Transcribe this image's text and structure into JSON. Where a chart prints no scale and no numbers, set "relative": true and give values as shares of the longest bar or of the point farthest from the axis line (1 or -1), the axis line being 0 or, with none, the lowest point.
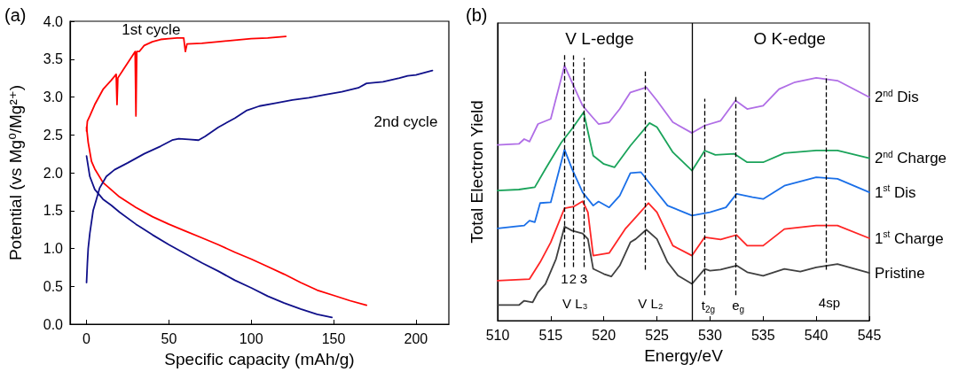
{
  "chart_data": [
    {
      "type": "line",
      "title": "(a)",
      "xlabel": "Specific capacity (mAh/g)",
      "ylabel": "Potential (vs Mg⁰/Mg²⁺)",
      "xlim": [
        -10,
        220
      ],
      "xticks": [
        0,
        50,
        100,
        150,
        200
      ],
      "ylim": [
        0,
        4
      ],
      "yticks": [
        {
          "value": 0,
          "label": "0.0"
        },
        0.5,
        {
          "value": 1,
          "label": "1.0"
        },
        1.5,
        {
          "value": 2,
          "label": "2.0"
        },
        2.5,
        {
          "value": 3,
          "label": "3.0"
        },
        3.5,
        {
          "value": 4,
          "label": "4.0"
        }
      ],
      "grid": false,
      "legend": false,
      "marker": "none",
      "line_style": "solid",
      "series": [
        {
          "name": "1st cycle",
          "color": "#ff0000",
          "x": [
            0,
            0.5,
            2,
            5,
            10,
            15,
            18,
            18.5,
            19,
            22,
            25,
            28,
            29.5,
            30,
            30.5,
            32,
            35,
            40,
            45,
            50,
            55,
            59,
            60,
            61,
            70,
            80,
            90,
            100,
            110,
            121
          ],
          "values": [
            2.55,
            2.68,
            2.75,
            2.9,
            3.1,
            3.22,
            3.3,
            2.9,
            3.25,
            3.35,
            3.45,
            3.55,
            3.6,
            2.75,
            3.6,
            3.6,
            3.68,
            3.73,
            3.76,
            3.77,
            3.78,
            3.78,
            3.6,
            3.7,
            3.71,
            3.73,
            3.75,
            3.77,
            3.78,
            3.8
          ]
        },
        {
          "color": "#ff0000",
          "x": [
            0,
            1,
            3,
            5,
            10,
            20,
            30,
            40,
            50,
            60,
            70,
            80,
            90,
            100,
            110,
            120,
            130,
            140,
            150,
            160,
            170
          ],
          "values": [
            2.6,
            2.4,
            2.15,
            2.05,
            1.87,
            1.68,
            1.54,
            1.42,
            1.32,
            1.23,
            1.14,
            1.05,
            0.95,
            0.86,
            0.76,
            0.66,
            0.55,
            0.45,
            0.38,
            0.31,
            0.25
          ]
        },
        {
          "name": "2nd cycle",
          "color": "#10108a",
          "x": [
            0,
            0.5,
            1,
            2,
            4,
            6,
            8,
            12,
            17,
            25,
            35,
            45,
            52,
            56,
            62,
            68,
            72,
            80,
            90,
            97,
            105,
            115,
            125,
            135,
            145,
            155,
            165,
            170,
            180,
            190,
            195,
            200,
            210
          ],
          "values": [
            0.55,
            0.8,
            1.0,
            1.2,
            1.5,
            1.65,
            1.8,
            1.95,
            2.04,
            2.13,
            2.25,
            2.35,
            2.43,
            2.45,
            2.44,
            2.43,
            2.48,
            2.6,
            2.72,
            2.82,
            2.88,
            2.92,
            2.96,
            2.99,
            3.03,
            3.07,
            3.12,
            3.18,
            3.2,
            3.25,
            3.28,
            3.29,
            3.35
          ]
        },
        {
          "color": "#10108a",
          "x": [
            0,
            2,
            5,
            10,
            15,
            20,
            30,
            40,
            50,
            60,
            70,
            80,
            90,
            100,
            110,
            120,
            130,
            140,
            149
          ],
          "values": [
            2.22,
            1.95,
            1.78,
            1.65,
            1.57,
            1.48,
            1.32,
            1.18,
            1.05,
            0.93,
            0.81,
            0.7,
            0.58,
            0.48,
            0.37,
            0.28,
            0.2,
            0.13,
            0.09
          ]
        }
      ]
    },
    {
      "type": "line",
      "title": "(b)",
      "xlabel": "Energy/eV",
      "ylabel": "Total Electron Yield",
      "relative": true,
      "xlim": [
        510,
        545
      ],
      "xticks": [
        510,
        515,
        520,
        525,
        530,
        535,
        540,
        545
      ],
      "grid": false,
      "legend": false,
      "marker": "none",
      "line_style": "solid",
      "series": [
        {
          "name": "Pristine",
          "color": "#404040",
          "x": [
            510,
            512,
            512.5,
            513.3,
            513.8,
            514.5,
            515.5,
            516.3,
            517,
            518,
            518.5,
            519,
            520,
            520.7,
            521.5,
            522.5,
            523,
            524,
            525,
            526,
            527,
            528.3,
            529.5,
            530,
            531,
            532.5,
            533.5,
            535,
            537,
            538.5,
            540,
            542,
            545
          ],
          "values": [
            0.061,
            0.061,
            0.078,
            0.072,
            0.111,
            0.144,
            0.242,
            0.369,
            0.353,
            0.342,
            0.32,
            0.203,
            0.183,
            0.173,
            0.216,
            0.307,
            0.32,
            0.357,
            0.32,
            0.229,
            0.176,
            0.144,
            0.203,
            0.196,
            0.2,
            0.216,
            0.19,
            0.176,
            0.203,
            0.192,
            0.209,
            0.222,
            0.187
          ]
        },
        {
          "name": "1$^{st}$ Charge",
          "color": "#ff2525",
          "x": [
            510,
            513,
            514,
            515,
            516.3,
            517.2,
            518,
            518.5,
            519,
            520.5,
            522,
            523,
            524.2,
            525,
            526.5,
            528.3,
            529.5,
            531,
            532.5,
            533.5,
            535,
            537,
            540,
            542,
            545
          ],
          "values": [
            0.157,
            0.163,
            0.229,
            0.307,
            0.441,
            0.448,
            0.468,
            0.425,
            0.255,
            0.265,
            0.359,
            0.405,
            0.461,
            0.425,
            0.294,
            0.255,
            0.327,
            0.318,
            0.336,
            0.294,
            0.294,
            0.359,
            0.373,
            0.373,
            0.323
          ]
        },
        {
          "name": "1$^{st}$ Dis",
          "color": "#1a6fe8",
          "x": [
            510,
            512.5,
            513,
            513.5,
            514,
            515,
            516.3,
            517,
            518,
            519,
            519.5,
            520.5,
            521.5,
            522.5,
            523.5,
            524.5,
            526,
            528.3,
            530,
            531.5,
            532.5,
            534,
            535,
            537,
            540,
            542,
            545
          ],
          "values": [
            0.362,
            0.373,
            0.392,
            0.386,
            0.461,
            0.464,
            0.671,
            0.595,
            0.503,
            0.451,
            0.467,
            0.444,
            0.49,
            0.579,
            0.582,
            0.529,
            0.451,
            0.412,
            0.425,
            0.444,
            0.497,
            0.484,
            0.477,
            0.529,
            0.562,
            0.556,
            0.503
          ]
        },
        {
          "name": "2$^{nd}$ Charge",
          "color": "#1aa35a",
          "x": [
            510,
            512,
            513.5,
            514.5,
            516,
            517,
            518.1,
            519,
            520,
            521,
            522.5,
            524.3,
            525,
            526.5,
            528.3,
            529.5,
            530.5,
            532.3,
            533.5,
            535,
            537,
            540,
            542,
            545
          ],
          "values": [
            0.51,
            0.514,
            0.523,
            0.595,
            0.699,
            0.752,
            0.817,
            0.647,
            0.614,
            0.601,
            0.686,
            0.775,
            0.759,
            0.66,
            0.588,
            0.667,
            0.65,
            0.654,
            0.621,
            0.621,
            0.657,
            0.667,
            0.667,
            0.637
          ]
        },
        {
          "name": "2$^{nd}$ Dis",
          "color": "#b06ee6",
          "x": [
            510,
            512,
            512.5,
            513,
            513.8,
            515,
            516.3,
            517,
            518,
            518.8,
            519.5,
            520.5,
            521.5,
            522.5,
            524,
            525,
            526.5,
            528.3,
            529.5,
            531,
            532.4,
            533.5,
            535,
            536.5,
            538,
            540,
            542,
            545
          ],
          "values": [
            0.689,
            0.693,
            0.712,
            0.702,
            0.771,
            0.791,
            1.0,
            0.935,
            0.843,
            0.804,
            0.771,
            0.778,
            0.83,
            0.895,
            0.915,
            0.863,
            0.778,
            0.736,
            0.765,
            0.784,
            0.863,
            0.83,
            0.843,
            0.908,
            0.935,
            0.952,
            0.941,
            0.876
          ]
        }
      ],
      "ref_lines": [
        {
          "axis": "x",
          "value": 516.3,
          "line_style": "dashed",
          "color": "#000000"
        },
        {
          "axis": "x",
          "value": 517.1,
          "line_style": "dashed",
          "color": "#000000"
        },
        {
          "axis": "x",
          "value": 518.1,
          "line_style": "dashed",
          "color": "#000000"
        },
        {
          "axis": "x",
          "value": 523.9,
          "line_style": "dashed",
          "color": "#000000",
          "label": "V L₂"
        },
        {
          "axis": "x",
          "value": 528.3,
          "line_style": "solid",
          "color": "#000000"
        },
        {
          "axis": "x",
          "value": 529.5,
          "line_style": "dashed",
          "color": "#000000",
          "label": "t$_{2g}$"
        },
        {
          "axis": "x",
          "value": 532.4,
          "line_style": "dashed",
          "color": "#000000",
          "label": "e$_{g}$"
        },
        {
          "axis": "x",
          "value": 540.9,
          "line_style": "dashed",
          "color": "#000000",
          "label": "4sp"
        }
      ],
      "annotations": [
        "V L-edge",
        "O K-edge",
        "V L₃",
        "1",
        "2",
        "3"
      ]
    }
  ]
}
